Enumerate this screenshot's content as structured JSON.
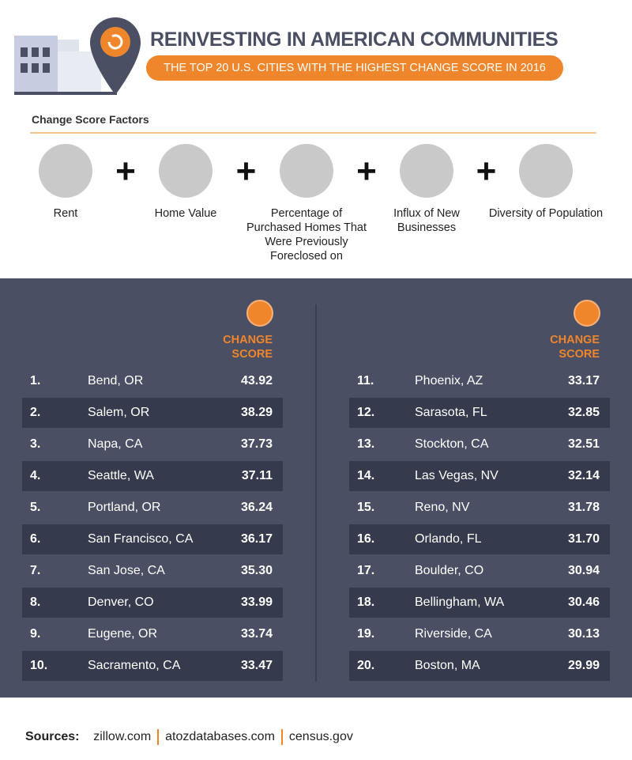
{
  "header": {
    "title": "REINVESTING IN AMERICAN COMMUNITIES",
    "subtitle": "THE TOP 20 U.S. CITIES WITH THE HIGHEST CHANGE SCORE IN 2016"
  },
  "factors": {
    "heading": "Change Score Factors",
    "items": [
      "Rent",
      "Home Value",
      "Percentage of Purchased Homes That Were Previously Foreclosed on",
      "Influx of New Businesses",
      "Diversity of Population"
    ]
  },
  "table": {
    "score_header": "CHANGE SCORE",
    "rows": [
      [
        "1.",
        "Bend, OR",
        "43.92"
      ],
      [
        "2.",
        "Salem, OR",
        "38.29"
      ],
      [
        "3.",
        "Napa, CA",
        "37.73"
      ],
      [
        "4.",
        "Seattle, WA",
        "37.11"
      ],
      [
        "5.",
        "Portland, OR",
        "36.24"
      ],
      [
        "6.",
        "San Francisco, CA",
        "36.17"
      ],
      [
        "7.",
        "San Jose, CA",
        "35.30"
      ],
      [
        "8.",
        "Denver, CO",
        "33.99"
      ],
      [
        "9.",
        "Eugene, OR",
        "33.74"
      ],
      [
        "10.",
        "Sacramento, CA",
        "33.47"
      ],
      [
        "11.",
        "Phoenix, AZ",
        "33.17"
      ],
      [
        "12.",
        "Sarasota, FL",
        "32.85"
      ],
      [
        "13.",
        "Stockton, CA",
        "32.51"
      ],
      [
        "14.",
        "Las Vegas, NV",
        "32.14"
      ],
      [
        "15.",
        "Reno, NV",
        "31.78"
      ],
      [
        "16.",
        "Orlando, FL",
        "31.70"
      ],
      [
        "17.",
        "Boulder, CO",
        "30.94"
      ],
      [
        "18.",
        "Bellingham, WA",
        "30.46"
      ],
      [
        "19.",
        "Riverside, CA",
        "30.13"
      ],
      [
        "20.",
        "Boston, MA",
        "29.99"
      ]
    ]
  },
  "sources": {
    "label": "Sources:",
    "items": [
      "zillow.com",
      "atozdatabases.com",
      "census.gov"
    ]
  }
}
